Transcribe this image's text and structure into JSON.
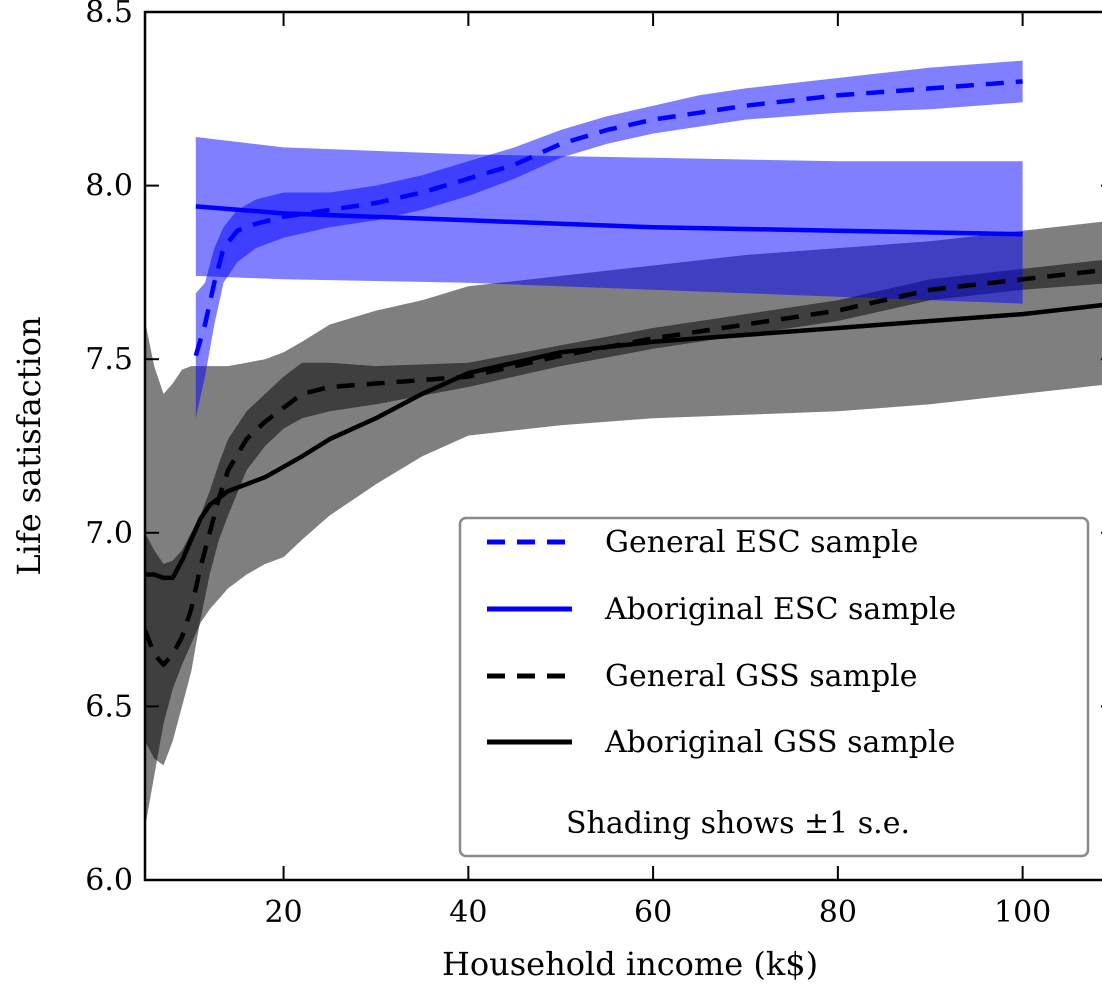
{
  "chart_data": {
    "type": "line",
    "title": "",
    "xlabel": "Household income (k$)",
    "ylabel": "Life satisfaction",
    "xlim": [
      5,
      110
    ],
    "ylim": [
      6.0,
      8.5
    ],
    "xticks": [
      20,
      40,
      60,
      80,
      100
    ],
    "yticks": [
      6.0,
      6.5,
      7.0,
      7.5,
      8.0,
      8.5
    ],
    "xtick_labels": [
      "20",
      "40",
      "60",
      "80",
      "100"
    ],
    "ytick_labels": [
      "6.0",
      "6.5",
      "7.0",
      "7.5",
      "8.0",
      "8.5"
    ],
    "grid": false,
    "legend_position": "lower-right",
    "note": "Shading shows ±1 s.e.",
    "series": [
      {
        "name": "General ESC sample",
        "color": "#0000ff",
        "style": "dashed",
        "band_color": "#0000ff",
        "x": [
          10.5,
          11.5,
          12.5,
          13.5,
          15,
          17,
          20,
          25,
          30,
          35,
          40,
          45,
          50,
          55,
          60,
          65,
          70,
          80,
          90,
          100
        ],
        "y": [
          7.51,
          7.6,
          7.72,
          7.82,
          7.87,
          7.89,
          7.91,
          7.93,
          7.95,
          7.98,
          8.02,
          8.06,
          8.12,
          8.16,
          8.19,
          8.21,
          8.23,
          8.26,
          8.28,
          8.3
        ],
        "lo": [
          7.33,
          7.45,
          7.6,
          7.72,
          7.78,
          7.82,
          7.85,
          7.88,
          7.9,
          7.93,
          7.97,
          8.02,
          8.08,
          8.12,
          8.15,
          8.17,
          8.19,
          8.21,
          8.22,
          8.24
        ],
        "hi": [
          7.69,
          7.72,
          7.82,
          7.88,
          7.93,
          7.96,
          7.98,
          7.98,
          8.0,
          8.03,
          8.07,
          8.11,
          8.16,
          8.2,
          8.23,
          8.26,
          8.28,
          8.31,
          8.34,
          8.36
        ]
      },
      {
        "name": "Aboriginal ESC sample",
        "color": "#0000ff",
        "style": "solid",
        "band_color": "#0000ff",
        "x": [
          10.5,
          20,
          40,
          60,
          80,
          100
        ],
        "y": [
          7.94,
          7.92,
          7.9,
          7.88,
          7.87,
          7.86
        ],
        "lo": [
          7.74,
          7.73,
          7.72,
          7.7,
          7.68,
          7.66
        ],
        "hi": [
          8.14,
          8.11,
          8.09,
          8.08,
          8.07,
          8.07
        ]
      },
      {
        "name": "General GSS sample",
        "color": "#000000",
        "style": "dashed",
        "band_color": "#000000",
        "x": [
          5,
          6,
          7,
          8,
          9,
          10,
          11,
          12,
          13,
          14,
          16,
          18,
          20,
          22,
          25,
          30,
          40,
          50,
          60,
          70,
          80,
          85,
          90,
          100,
          110
        ],
        "y": [
          6.72,
          6.65,
          6.62,
          6.65,
          6.7,
          6.78,
          6.9,
          7.0,
          7.1,
          7.18,
          7.27,
          7.32,
          7.36,
          7.4,
          7.42,
          7.43,
          7.45,
          7.51,
          7.56,
          7.6,
          7.64,
          7.67,
          7.7,
          7.73,
          7.76
        ],
        "lo": [
          6.4,
          6.35,
          6.33,
          6.4,
          6.5,
          6.6,
          6.75,
          6.88,
          6.98,
          7.05,
          7.18,
          7.25,
          7.3,
          7.33,
          7.35,
          7.37,
          7.42,
          7.48,
          7.53,
          7.57,
          7.61,
          7.64,
          7.67,
          7.7,
          7.72
        ],
        "hi": [
          7.0,
          6.95,
          6.91,
          6.92,
          6.95,
          7.0,
          7.05,
          7.12,
          7.2,
          7.27,
          7.35,
          7.4,
          7.45,
          7.49,
          7.49,
          7.48,
          7.49,
          7.54,
          7.59,
          7.63,
          7.67,
          7.7,
          7.73,
          7.76,
          7.79
        ]
      },
      {
        "name": "Aboriginal GSS sample",
        "color": "#000000",
        "style": "solid",
        "band_color": "#000000",
        "x": [
          5,
          6,
          7,
          8,
          9,
          10,
          11,
          12,
          14,
          16,
          18,
          20,
          22,
          25,
          30,
          35,
          40,
          50,
          60,
          70,
          80,
          90,
          100,
          110
        ],
        "y": [
          6.88,
          6.88,
          6.87,
          6.87,
          6.92,
          6.98,
          7.04,
          7.08,
          7.12,
          7.14,
          7.16,
          7.19,
          7.22,
          7.27,
          7.33,
          7.4,
          7.46,
          7.52,
          7.55,
          7.57,
          7.59,
          7.61,
          7.63,
          7.66
        ],
        "lo": [
          6.15,
          6.3,
          6.45,
          6.55,
          6.62,
          6.68,
          6.74,
          6.78,
          6.84,
          6.88,
          6.91,
          6.93,
          6.98,
          7.05,
          7.14,
          7.22,
          7.28,
          7.31,
          7.33,
          7.34,
          7.35,
          7.37,
          7.4,
          7.43
        ],
        "hi": [
          7.61,
          7.48,
          7.4,
          7.43,
          7.47,
          7.48,
          7.48,
          7.48,
          7.48,
          7.49,
          7.5,
          7.52,
          7.55,
          7.6,
          7.64,
          7.67,
          7.71,
          7.74,
          7.77,
          7.8,
          7.82,
          7.84,
          7.87,
          7.9
        ]
      }
    ]
  }
}
